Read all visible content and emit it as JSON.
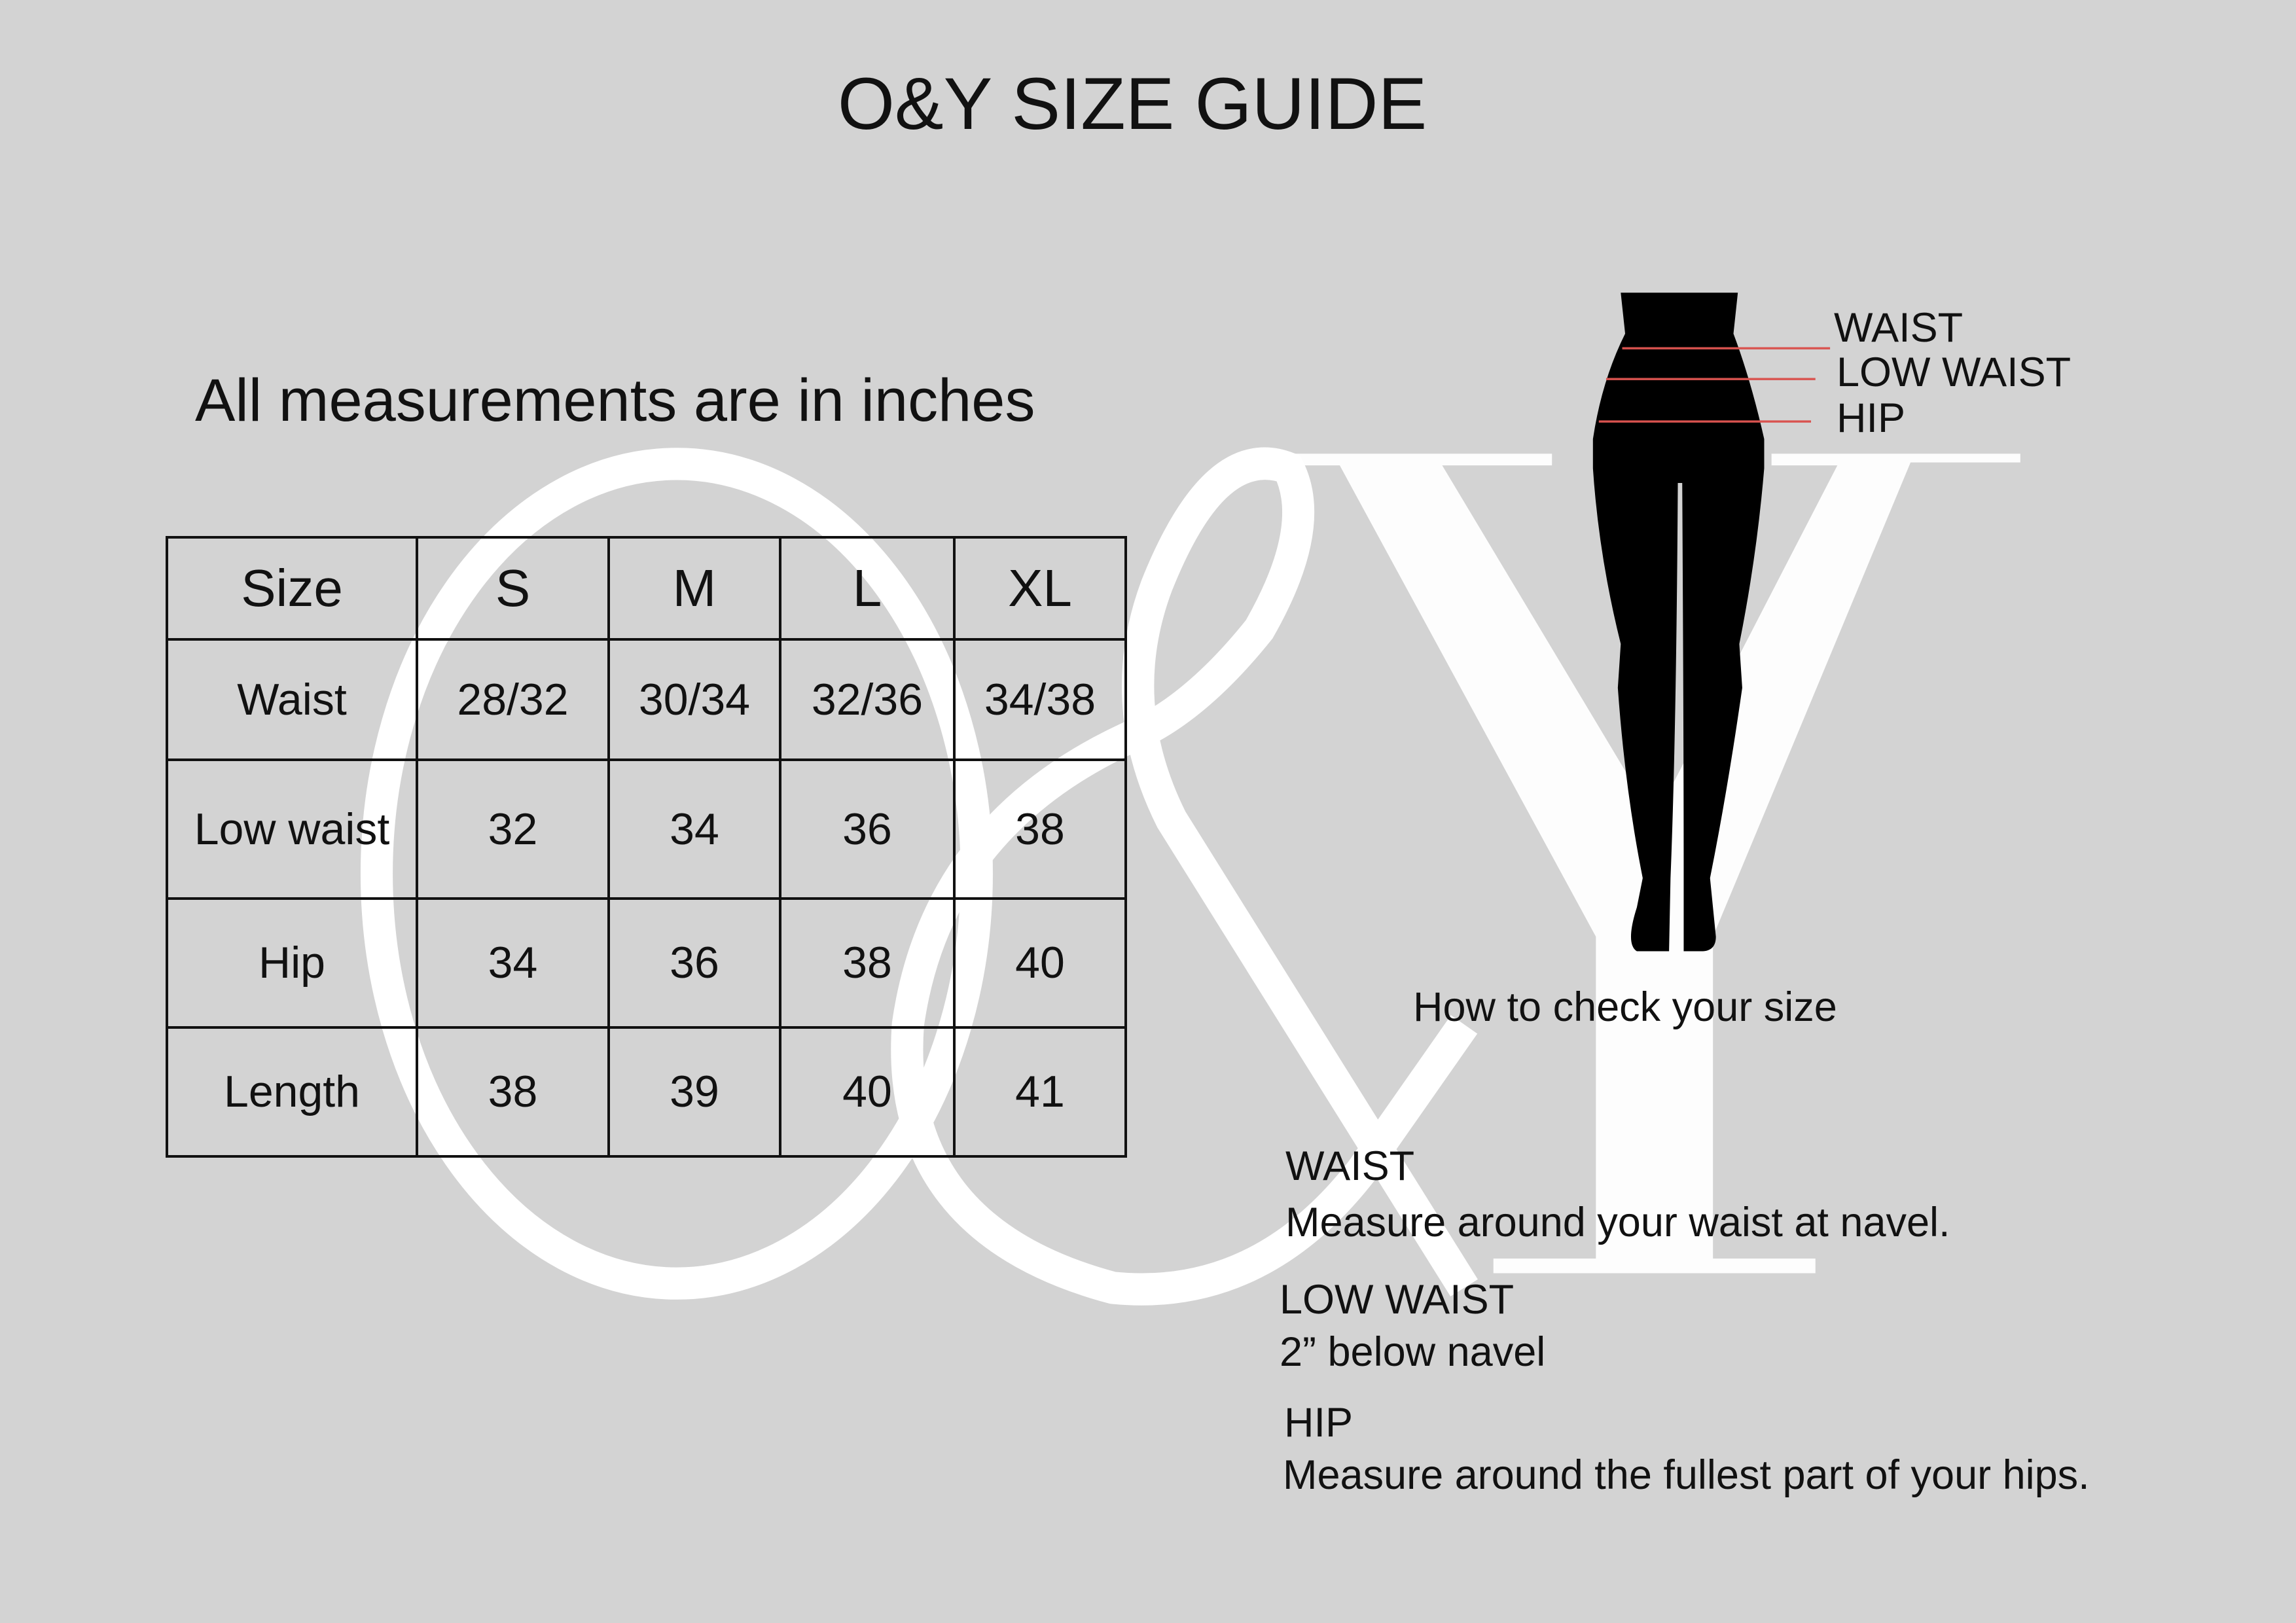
{
  "title": "O&Y SIZE GUIDE",
  "subtitle": "All measurements are in inches",
  "watermark": "O&Y",
  "table": {
    "headers": [
      "Size",
      "S",
      "M",
      "L",
      "XL"
    ],
    "rows": [
      [
        "Waist",
        "28/32",
        "30/34",
        "32/36",
        "34/38"
      ],
      [
        "Low waist",
        "32",
        "34",
        "36",
        "38"
      ],
      [
        "Hip",
        "34",
        "36",
        "38",
        "40"
      ],
      [
        "Length",
        "38",
        "39",
        "40",
        "41"
      ]
    ]
  },
  "figure": {
    "labels": [
      "WAIST",
      "LOW WAIST",
      "HIP"
    ],
    "line_color": "#d9534f"
  },
  "how_to": "How to check your size",
  "instructions": [
    {
      "heading": "WAIST",
      "text": "Measure around your waist at navel."
    },
    {
      "heading": "LOW WAIST",
      "text": "2” below navel"
    },
    {
      "heading": "HIP",
      "text": "Measure around the fullest part of your hips."
    }
  ],
  "colors": {
    "background": "#d3d3d3",
    "watermark": "#ffffff",
    "text": "#111111"
  }
}
